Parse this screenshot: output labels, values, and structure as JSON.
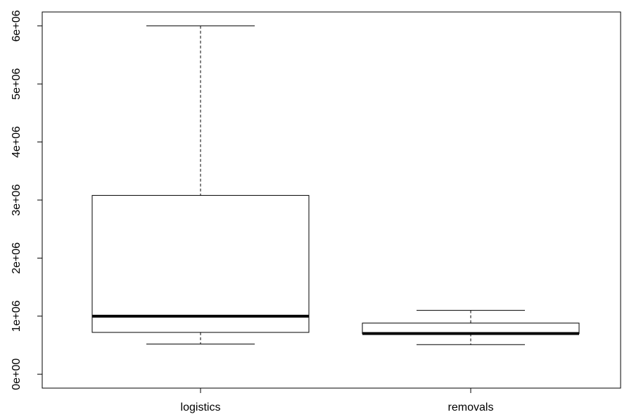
{
  "chart_data": {
    "type": "boxplot",
    "title": "",
    "xlabel": "",
    "ylabel": "",
    "ylim": [
      -240000,
      6240000
    ],
    "y_ticks": [
      0,
      1000000,
      2000000,
      3000000,
      4000000,
      5000000,
      6000000
    ],
    "y_tick_labels": [
      "0e+00",
      "1e+06",
      "2e+06",
      "3e+06",
      "4e+06",
      "5e+06",
      "6e+06"
    ],
    "categories": [
      "logistics",
      "removals"
    ],
    "boxes": [
      {
        "name": "logistics",
        "min": 520000,
        "q1": 720000,
        "median": 1000000,
        "q3": 3080000,
        "max": 6000000
      },
      {
        "name": "removals",
        "min": 510000,
        "q1": 700000,
        "median": 700000,
        "q3": 880000,
        "max": 1100000
      }
    ],
    "grid": false,
    "colors": {
      "box_fill": "#ffffff",
      "stroke": "#000000"
    }
  }
}
